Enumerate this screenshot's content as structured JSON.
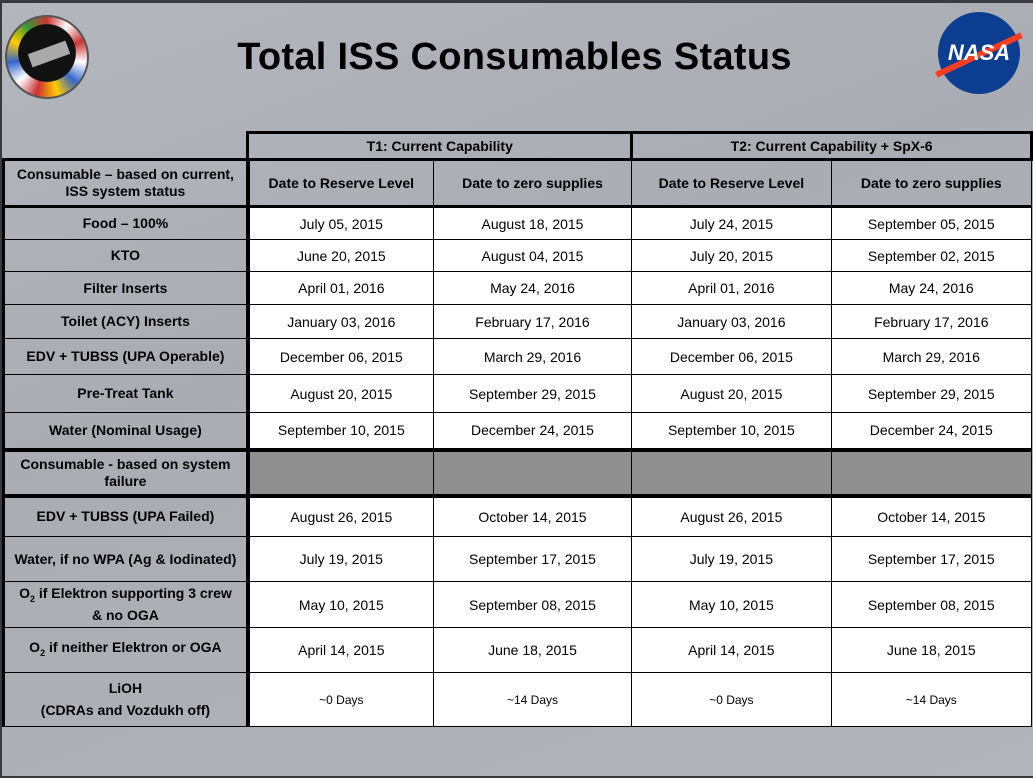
{
  "title": "Total ISS Consumables Status",
  "logos": {
    "left": "ISS program emblem",
    "right": "NASA"
  },
  "table": {
    "groups": [
      "T1: Current Capability",
      "T2: Current Capability + SpX-6"
    ],
    "first_header": "Consumable – based on current, ISS system status",
    "columns": [
      "Date to Reserve Level",
      "Date to zero supplies",
      "Date to Reserve Level",
      "Date to zero supplies"
    ],
    "rows": [
      {
        "label": "Food  – 100%",
        "values": [
          "July 05, 2015",
          "August 18, 2015",
          "July 24, 2015",
          "September 05, 2015"
        ]
      },
      {
        "label": "KTO",
        "values": [
          "June 20, 2015",
          "August 04, 2015",
          "July 20, 2015",
          "September 02, 2015"
        ]
      },
      {
        "label": "Filter Inserts",
        "values": [
          "April 01, 2016",
          "May 24, 2016",
          "April 01, 2016",
          "May 24, 2016"
        ]
      },
      {
        "label": "Toilet (ACY) Inserts",
        "values": [
          "January 03, 2016",
          "February 17, 2016",
          "January 03, 2016",
          "February 17, 2016"
        ]
      },
      {
        "label": "EDV + TUBSS (UPA Operable)",
        "values": [
          "December 06, 2015",
          "March 29, 2016",
          "December 06, 2015",
          "March 29, 2016"
        ]
      },
      {
        "label": "Pre-Treat Tank",
        "values": [
          "August 20, 2015",
          "September 29, 2015",
          "August 20, 2015",
          "September 29, 2015"
        ]
      },
      {
        "label": "Water (Nominal Usage)",
        "values": [
          "September 10, 2015",
          "December 24, 2015",
          "September 10, 2015",
          "December 24, 2015"
        ]
      }
    ],
    "failure_header": "Consumable - based on system failure",
    "failure_rows": [
      {
        "label": "EDV + TUBSS (UPA Failed)",
        "values": [
          "August 26, 2015",
          "October 14, 2015",
          "August 26, 2015",
          "October 14, 2015"
        ]
      },
      {
        "label": "Water, if no WPA (Ag & Iodinated)",
        "values": [
          "July 19, 2015",
          "September 17, 2015",
          "July 19, 2015",
          "September 17, 2015"
        ]
      },
      {
        "label_prefix": "O",
        "label_sub": "2",
        "label": " if Elektron supporting 3 crew & no OGA",
        "values": [
          "May 10, 2015",
          "September 08, 2015",
          "May 10, 2015",
          "September 08, 2015"
        ]
      },
      {
        "label_prefix": "O",
        "label_sub": "2",
        "label": " if neither Elektron or OGA",
        "values": [
          "April 14, 2015",
          "June 18, 2015",
          "April 14, 2015",
          "June 18, 2015"
        ]
      },
      {
        "label": "LiOH",
        "label_line2": "(CDRAs and Vozdukh off)",
        "values": [
          "~0 Days",
          "~14 Days",
          "~0 Days",
          "~14 Days"
        ]
      }
    ]
  }
}
